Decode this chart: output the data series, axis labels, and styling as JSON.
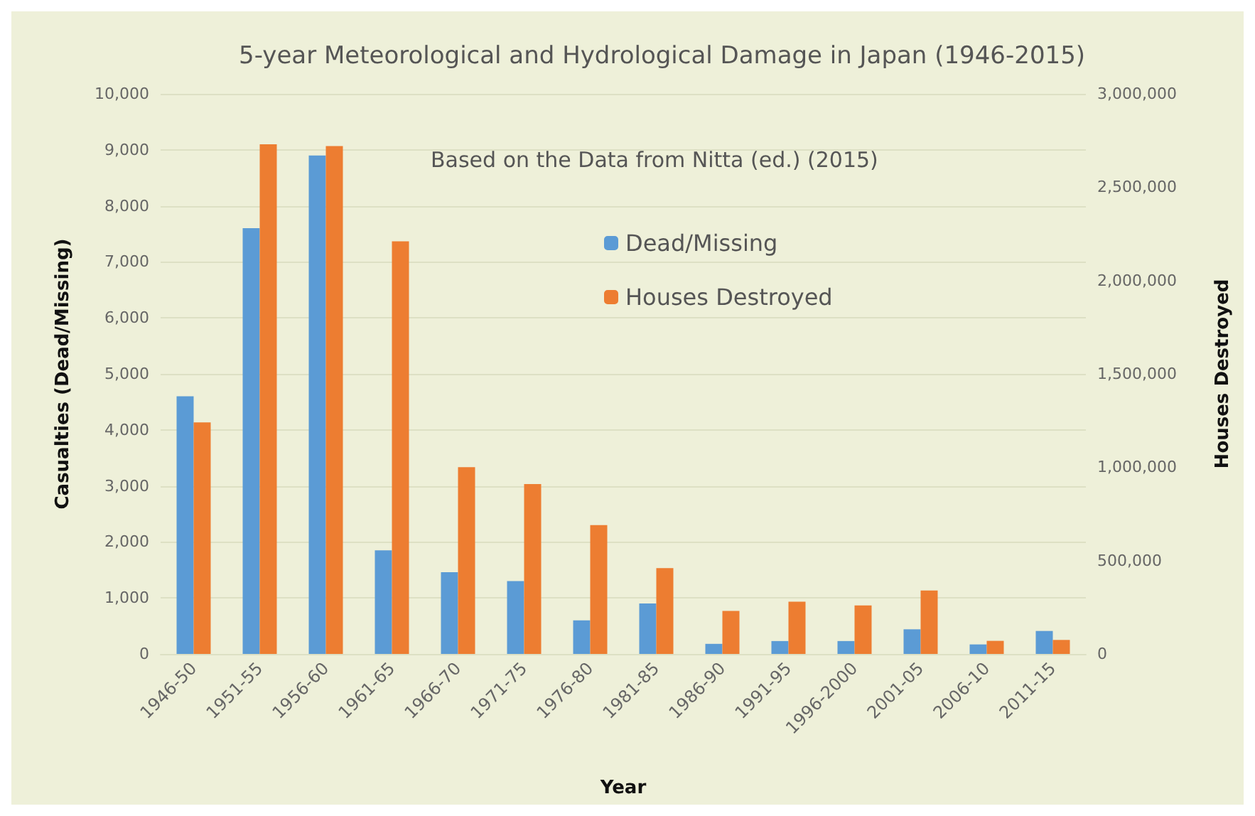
{
  "chart_data": {
    "type": "bar",
    "title": "5-year Meteorological and Hydrological Damage in Japan (1946-2015)",
    "subtitle": "Based on the Data from Nitta (ed.) (2015)",
    "xlabel": "Year",
    "ylabel": "Casualties (Dead/Missing)",
    "y2label": "Houses Destroyed",
    "categories": [
      "1946-50",
      "1951-55",
      "1956-60",
      "1961-65",
      "1966-70",
      "1971-75",
      "1976-80",
      "1981-85",
      "1986-90",
      "1991-95",
      "1996-2000",
      "2001-05",
      "2006-10",
      "2011-15"
    ],
    "series": [
      {
        "name": "Dead/Missing",
        "color": "#5b9bd5",
        "values": [
          4600,
          7600,
          8900,
          1850,
          1460,
          1300,
          600,
          900,
          180,
          230,
          230,
          440,
          170,
          410
        ]
      },
      {
        "name": "Houses Destroyed",
        "color": "#ed7d31",
        "axis": "y2",
        "values": [
          1240000,
          2730000,
          2720000,
          2210000,
          1000000,
          910000,
          690000,
          460000,
          230000,
          280000,
          260000,
          340000,
          70000,
          75000
        ]
      }
    ],
    "ylim": [
      0,
      10000
    ],
    "yticks": [
      {
        "value": 0,
        "label": "0"
      },
      {
        "value": 1000,
        "label": "1,000"
      },
      {
        "value": 2000,
        "label": "2,000"
      },
      {
        "value": 3000,
        "label": "3,000"
      },
      {
        "value": 4000,
        "label": "4,000"
      },
      {
        "value": 5000,
        "label": "5,000"
      },
      {
        "value": 6000,
        "label": "6,000"
      },
      {
        "value": 7000,
        "label": "7,000"
      },
      {
        "value": 8000,
        "label": "8,000"
      },
      {
        "value": 9000,
        "label": "9,000"
      },
      {
        "value": 10000,
        "label": "10,000"
      }
    ],
    "y2lim": [
      0,
      3000000
    ],
    "y2ticks": [
      {
        "value": 0,
        "label": "0"
      },
      {
        "value": 500000,
        "label": "500,000"
      },
      {
        "value": 1000000,
        "label": "1,000,000"
      },
      {
        "value": 1500000,
        "label": "1,500,000"
      },
      {
        "value": 2000000,
        "label": "2,000,000"
      },
      {
        "value": 2500000,
        "label": "2,500,000"
      },
      {
        "value": 3000000,
        "label": "3,000,000"
      }
    ],
    "grid": "y",
    "legend": "top"
  }
}
